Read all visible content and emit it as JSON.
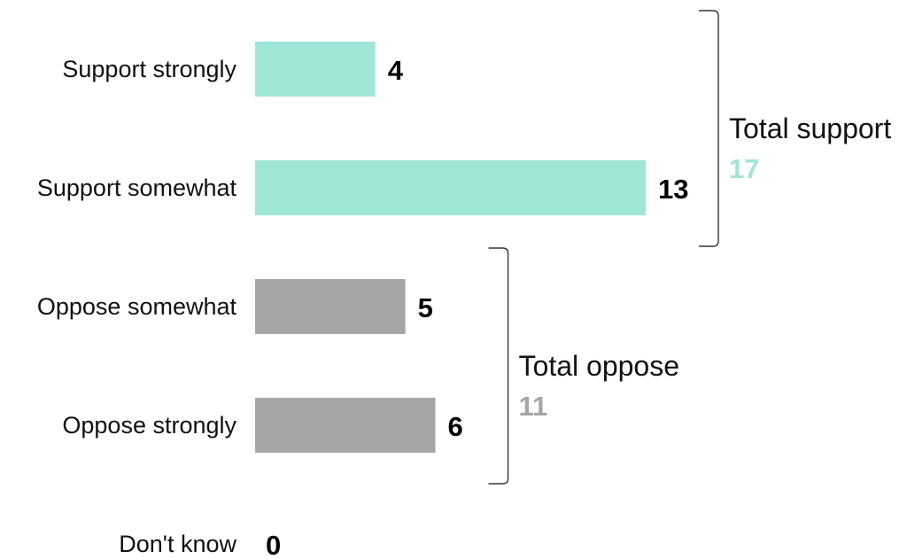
{
  "chart_data": {
    "type": "bar",
    "orientation": "horizontal",
    "categories": [
      "Support strongly",
      "Support somewhat",
      "Oppose somewhat",
      "Oppose strongly",
      "Don't know"
    ],
    "values": [
      4,
      13,
      5,
      6,
      0
    ],
    "groups": [
      {
        "label": "Total support",
        "total": "17",
        "members": [
          0,
          1
        ],
        "color": "#a0e6d8"
      },
      {
        "label": "Total oppose",
        "total": "11",
        "members": [
          2,
          3
        ],
        "color": "#a6a6a6"
      }
    ],
    "bar_colors": [
      "#a0e6d8",
      "#a0e6d8",
      "#a6a6a6",
      "#a6a6a6",
      "#a6a6a6"
    ],
    "xlim": [
      0,
      13
    ],
    "grid": false,
    "legend": "none"
  }
}
